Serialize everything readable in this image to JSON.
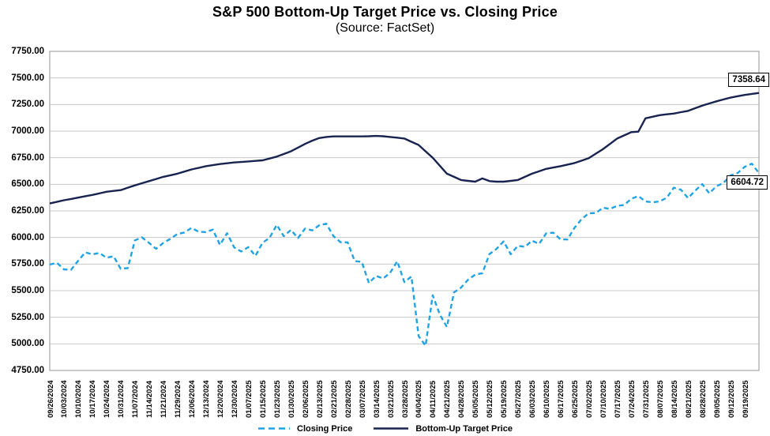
{
  "chart_data": {
    "type": "line",
    "title": "S&P 500 Bottom-Up Target Price vs. Closing Price",
    "subtitle": "(Source: FactSet)",
    "grid": "horizontal",
    "legend_position": "bottom",
    "y_axis": {
      "min": 4750,
      "max": 7750,
      "step": 250
    },
    "y_tick_labels": [
      "7750.00",
      "7500.00",
      "7250.00",
      "7000.00",
      "6750.00",
      "6500.00",
      "6250.00",
      "6000.00",
      "5750.00",
      "5500.00",
      "5250.00",
      "5000.00",
      "4750.00"
    ],
    "x_tick_labels": [
      "09/26/2024",
      "10/03/2024",
      "10/10/2024",
      "10/17/2024",
      "10/24/2024",
      "10/31/2024",
      "11/07/2024",
      "11/14/2024",
      "11/21/2024",
      "11/29/2024",
      "12/06/2024",
      "12/13/2024",
      "12/20/2024",
      "12/30/2024",
      "01/07/2025",
      "01/15/2025",
      "01/23/2025",
      "01/30/2025",
      "02/06/2025",
      "02/13/2025",
      "02/21/2025",
      "02/28/2025",
      "03/07/2025",
      "03/14/2025",
      "03/21/2025",
      "03/28/2025",
      "04/04/2025",
      "04/11/2025",
      "04/21/2025",
      "04/28/2025",
      "05/05/2025",
      "05/12/2025",
      "05/19/2025",
      "05/27/2025",
      "06/03/2025",
      "06/10/2025",
      "06/17/2025",
      "06/25/2025",
      "07/02/2025",
      "07/10/2025",
      "07/17/2025",
      "07/24/2025",
      "07/31/2025",
      "08/07/2025",
      "08/14/2025",
      "08/21/2025",
      "08/28/2025",
      "09/05/2025",
      "09/12/2025",
      "09/19/2025"
    ],
    "points_per_tick": 2,
    "colors": {
      "grid": "#C9C9C9",
      "plot_border": "#A6A6A6"
    },
    "series": [
      {
        "name": "Closing Price",
        "color": "#20A3E4",
        "line_style": "dashed",
        "end_label": "6604.72",
        "values": [
          5745.37,
          5762.48,
          5699.94,
          5695.94,
          5780.05,
          5859.85,
          5841.47,
          5853.98,
          5809.86,
          5823.52,
          5705.45,
          5712.69,
          5973.1,
          6001.35,
          5949.17,
          5893.62,
          5948.71,
          5987.37,
          6032.38,
          6047.15,
          6090.27,
          6052.85,
          6051.09,
          6074.08,
          5930.85,
          6040.04,
          5906.94,
          5868.55,
          5909.03,
          5827.04,
          5949.91,
          5996.66,
          6118.71,
          6012.28,
          6071.17,
          5994.57,
          6083.57,
          6066.44,
          6115.07,
          6129.58,
          6013.13,
          5955.25,
          5954.5,
          5778.15,
          5770.2,
          5572.07,
          5638.94,
          5614.66,
          5667.56,
          5776.65,
          5580.94,
          5633.07,
          5074.08,
          4982.77,
          5456.9,
          5275.7,
          5158.2,
          5484.77,
          5528.75,
          5604.14,
          5650.38,
          5663.94,
          5844.19,
          5892.58,
          5963.6,
          5842.01,
          5921.54,
          5912.17,
          5970.37,
          5939.3,
          6038.81,
          6045.26,
          5982.72,
          5980.87,
          6092.16,
          6173.07,
          6227.42,
          6229.98,
          6280.46,
          6268.56,
          6297.36,
          6305.6,
          6363.35,
          6389.77,
          6339.39,
          6329.94,
          6340.0,
          6373.45,
          6468.54,
          6449.15,
          6370.17,
          6439.32,
          6501.86,
          6415.54,
          6481.5,
          6512.61,
          6584.29,
          6606.76,
          6664.36,
          6693.75,
          6604.72
        ]
      },
      {
        "name": "Bottom-Up Target Price",
        "color": "#182350",
        "line_style": "solid",
        "end_label": "7358.64",
        "values": [
          6320,
          6335,
          6350,
          6362,
          6375,
          6388,
          6400,
          6415,
          6430,
          6438,
          6445,
          6468,
          6490,
          6510,
          6530,
          6550,
          6570,
          6585,
          6600,
          6620,
          6640,
          6655,
          6670,
          6680,
          6690,
          6698,
          6705,
          6710,
          6715,
          6720,
          6725,
          6742,
          6760,
          6785,
          6810,
          6845,
          6880,
          6910,
          6935,
          6945,
          6950,
          6950,
          6950,
          6950,
          6950,
          6952,
          6955,
          6952,
          6945,
          6938,
          6930,
          6900,
          6870,
          6810,
          6750,
          6675,
          6600,
          6570,
          6540,
          6532,
          6525,
          6555,
          6530,
          6525,
          6525,
          6532,
          6540,
          6570,
          6600,
          6622,
          6645,
          6658,
          6670,
          6685,
          6700,
          6722,
          6745,
          6788,
          6830,
          6880,
          6930,
          6960,
          6990,
          6995,
          7120,
          7135,
          7150,
          7158,
          7165,
          7178,
          7190,
          7215,
          7240,
          7260,
          7280,
          7298,
          7315,
          7328,
          7340,
          7350,
          7358.64
        ]
      }
    ]
  }
}
